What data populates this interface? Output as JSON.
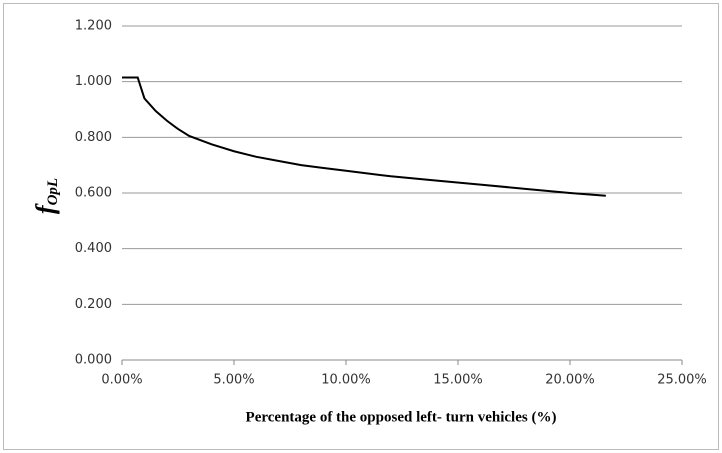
{
  "chart_data": {
    "type": "line",
    "y_label": "f",
    "y_label_sub": "OpL",
    "x_label": "Percentage of the opposed left- turn vehicles (%)",
    "series": [
      {
        "color": "#000000",
        "x": [
          0,
          0.7,
          1,
          1.5,
          2,
          2.5,
          3,
          4,
          5,
          6,
          7,
          8,
          9,
          10,
          12,
          14,
          16,
          18,
          20,
          21.6
        ],
        "values": [
          1.015,
          1.015,
          0.94,
          0.895,
          0.86,
          0.83,
          0.805,
          0.775,
          0.75,
          0.73,
          0.715,
          0.7,
          0.69,
          0.68,
          0.66,
          0.645,
          0.63,
          0.615,
          0.6,
          0.59
        ]
      }
    ],
    "xlim": [
      0,
      25
    ],
    "xticks": [
      {
        "value": 0,
        "label": "0.00%"
      },
      {
        "value": 5,
        "label": "5.00%"
      },
      {
        "value": 10,
        "label": "10.00%"
      },
      {
        "value": 15,
        "label": "15.00%"
      },
      {
        "value": 20,
        "label": "20.00%"
      },
      {
        "value": 25,
        "label": "25.00%"
      }
    ],
    "ylim": [
      0,
      1.2
    ],
    "yticks": [
      {
        "value": 0,
        "label": "0.000"
      },
      {
        "value": 0.2,
        "label": "0.200"
      },
      {
        "value": 0.4,
        "label": "0.400"
      },
      {
        "value": 0.6,
        "label": "0.600"
      },
      {
        "value": 0.8,
        "label": "0.800"
      },
      {
        "value": 1.0,
        "label": "1.000"
      },
      {
        "value": 1.2,
        "label": "1.200"
      }
    ],
    "grid": true
  }
}
